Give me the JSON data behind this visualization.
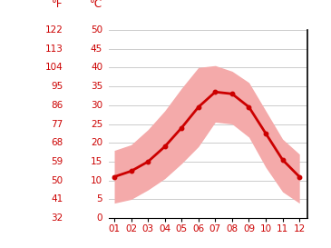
{
  "months": [
    1,
    2,
    3,
    4,
    5,
    6,
    7,
    8,
    9,
    10,
    11,
    12
  ],
  "month_labels": [
    "01",
    "02",
    "03",
    "04",
    "05",
    "06",
    "07",
    "08",
    "09",
    "10",
    "11",
    "12"
  ],
  "mean_temp_c": [
    11.0,
    12.5,
    15.0,
    19.0,
    24.0,
    29.5,
    33.5,
    33.0,
    29.5,
    22.5,
    15.5,
    11.0
  ],
  "high_temp_c": [
    18.0,
    19.5,
    23.5,
    28.5,
    34.5,
    40.0,
    40.5,
    39.0,
    36.0,
    28.5,
    21.0,
    17.0
  ],
  "low_temp_c": [
    4.0,
    5.0,
    7.5,
    10.5,
    14.5,
    19.0,
    25.5,
    25.0,
    21.5,
    13.5,
    7.0,
    4.0
  ],
  "y_ticks_c": [
    0,
    5,
    10,
    15,
    20,
    25,
    30,
    35,
    40,
    45,
    50
  ],
  "y_ticks_f": [
    32,
    41,
    50,
    59,
    68,
    77,
    86,
    95,
    104,
    113,
    122
  ],
  "ylim_c": [
    0,
    50
  ],
  "line_color": "#cc0000",
  "band_color": "#f4aaaa",
  "axis_color": "#cc0000",
  "grid_color": "#cccccc",
  "background_color": "#ffffff",
  "tick_fontsize": 7.5,
  "label_fontsize": 8.5
}
